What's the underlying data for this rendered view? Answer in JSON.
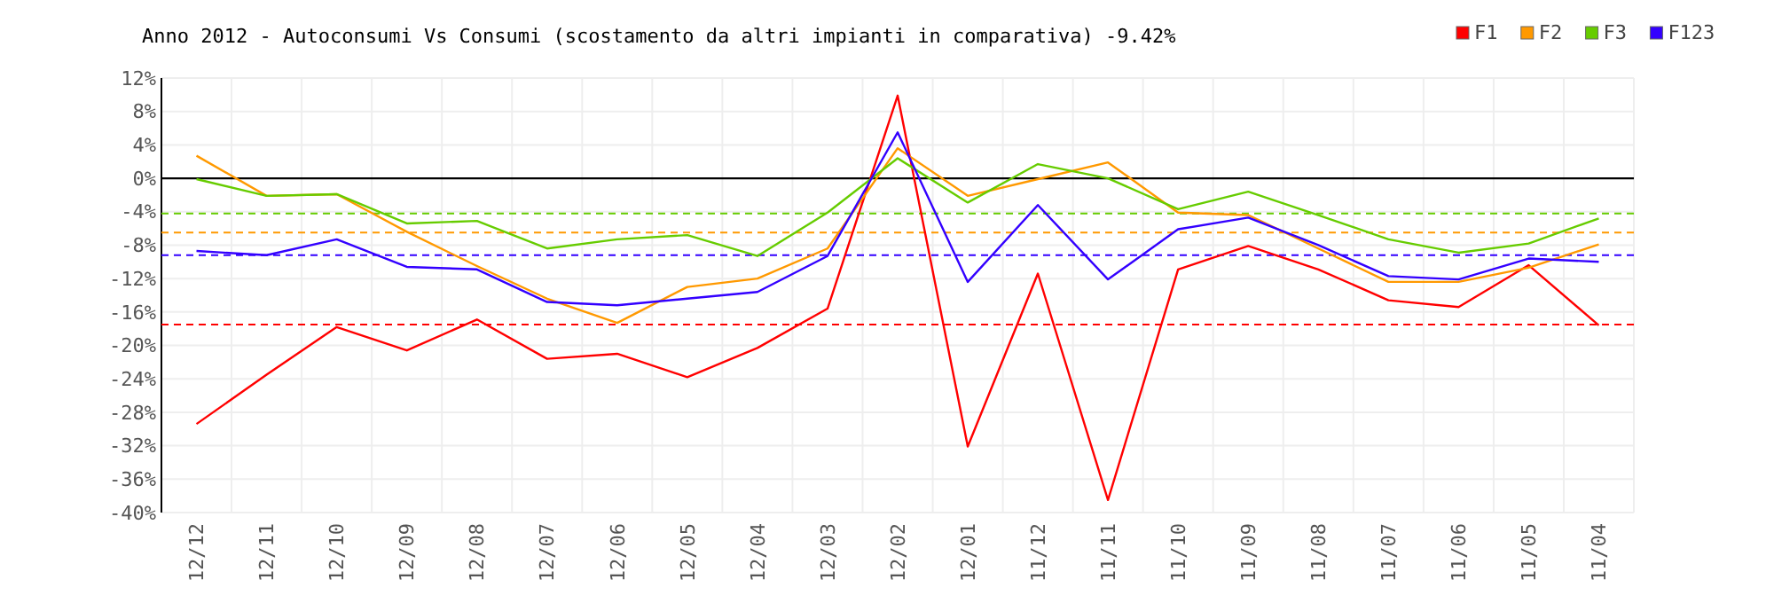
{
  "chart_data": {
    "type": "line",
    "title": "Anno 2012 - Autoconsumi Vs Consumi (scostamento da altri impianti in comparativa) -9.42%",
    "categories": [
      "12/12",
      "12/11",
      "12/10",
      "12/09",
      "12/08",
      "12/07",
      "12/06",
      "12/05",
      "12/04",
      "12/03",
      "12/02",
      "12/01",
      "11/12",
      "11/11",
      "11/10",
      "11/09",
      "11/08",
      "11/07",
      "11/06",
      "11/05",
      "11/04"
    ],
    "series": [
      {
        "name": "F1",
        "color": "#ff0000",
        "values": [
          -29.4,
          -23.5,
          -17.8,
          -20.6,
          -16.9,
          -21.6,
          -21,
          -23.8,
          -20.3,
          -15.6,
          9.9,
          -32.1,
          -11.4,
          -38.5,
          -10.9,
          -8.1,
          -10.9,
          -14.6,
          -15.4,
          -10.4,
          -17.6
        ]
      },
      {
        "name": "F2",
        "color": "#ff9900",
        "values": [
          2.7,
          -2.1,
          -1.9,
          -6.4,
          -10.5,
          -14.4,
          -17.3,
          -13,
          -12,
          -8.4,
          3.6,
          -2.1,
          -0.1,
          1.9,
          -4.1,
          -4.4,
          -8.4,
          -12.4,
          -12.4,
          -10.7,
          -7.9
        ]
      },
      {
        "name": "F3",
        "color": "#66cc00",
        "values": [
          -0.1,
          -2.1,
          -1.9,
          -5.4,
          -5.1,
          -8.4,
          -7.3,
          -6.8,
          -9.3,
          -4.1,
          2.4,
          -2.9,
          1.7,
          0,
          -3.7,
          -1.6,
          -4.4,
          -7.3,
          -8.9,
          -7.8,
          -4.8
        ]
      },
      {
        "name": "F123",
        "color": "#3300ff",
        "values": [
          -8.7,
          -9.2,
          -7.3,
          -10.6,
          -10.9,
          -14.8,
          -15.2,
          -14.4,
          -13.6,
          -9.3,
          5.5,
          -12.4,
          -3.2,
          -12.1,
          -6.1,
          -4.7,
          -8,
          -11.7,
          -12.1,
          -9.6,
          -10
        ]
      }
    ],
    "ylim": [
      -40,
      12
    ],
    "yticks": [
      {
        "value": 12,
        "label": "12%"
      },
      {
        "value": 8,
        "label": "8%"
      },
      {
        "value": 4,
        "label": "4%"
      },
      {
        "value": 0,
        "label": "0%"
      },
      {
        "value": -4,
        "label": "-4%"
      },
      {
        "value": -8,
        "label": "-8%"
      },
      {
        "value": -12,
        "label": "-12%"
      },
      {
        "value": -16,
        "label": "-16%"
      },
      {
        "value": -20,
        "label": "-20%"
      },
      {
        "value": -24,
        "label": "-24%"
      },
      {
        "value": -28,
        "label": "-28%"
      },
      {
        "value": -32,
        "label": "-32%"
      },
      {
        "value": -36,
        "label": "-36%"
      },
      {
        "value": -40,
        "label": "-40%"
      }
    ],
    "ref_lines": [
      {
        "axis": "y",
        "value": 0,
        "color": "#000000",
        "line_style": "solid"
      },
      {
        "axis": "y",
        "value": -4.2,
        "color": "#66cc00",
        "line_style": "dashed"
      },
      {
        "axis": "y",
        "value": -6.5,
        "color": "#ff9900",
        "line_style": "dashed"
      },
      {
        "axis": "y",
        "value": -9.2,
        "color": "#3300ff",
        "line_style": "dashed"
      },
      {
        "axis": "y",
        "value": -17.5,
        "color": "#ff0000",
        "line_style": "dashed"
      }
    ],
    "grid": true,
    "legend": "top right",
    "marker": "none",
    "line_style": "solid"
  }
}
